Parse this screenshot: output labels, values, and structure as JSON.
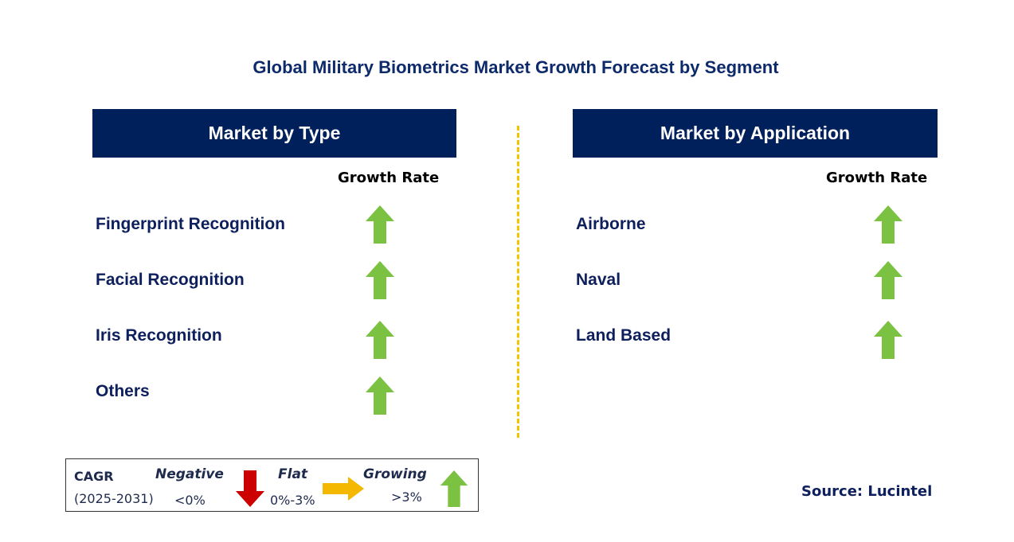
{
  "title": "Global Military Biometrics Market Growth Forecast by Segment",
  "left_panel": {
    "header": "Market by Type",
    "growth_rate_label": "Growth Rate",
    "items": [
      {
        "label": "Fingerprint Recognition",
        "trend": "growing"
      },
      {
        "label": "Facial Recognition",
        "trend": "growing"
      },
      {
        "label": "Iris Recognition",
        "trend": "growing"
      },
      {
        "label": "Others",
        "trend": "growing"
      }
    ]
  },
  "right_panel": {
    "header": "Market by Application",
    "growth_rate_label": "Growth Rate",
    "items": [
      {
        "label": "Airborne",
        "trend": "growing"
      },
      {
        "label": "Naval",
        "trend": "growing"
      },
      {
        "label": "Land Based",
        "trend": "growing"
      }
    ]
  },
  "legend": {
    "cagr_label": "CAGR",
    "period": "(2025-2031)",
    "negative": {
      "label": "Negative",
      "range": "<0%",
      "color": "#cc0000"
    },
    "flat": {
      "label": "Flat",
      "range": "0%-3%",
      "color": "#f5b800"
    },
    "growing": {
      "label": "Growing",
      "range": ">3%",
      "color": "#7cc242"
    }
  },
  "source": "Source: Lucintel",
  "colors": {
    "header_bg": "#00205b",
    "growth_arrow": "#7cc242",
    "divider": "#f5c400"
  }
}
